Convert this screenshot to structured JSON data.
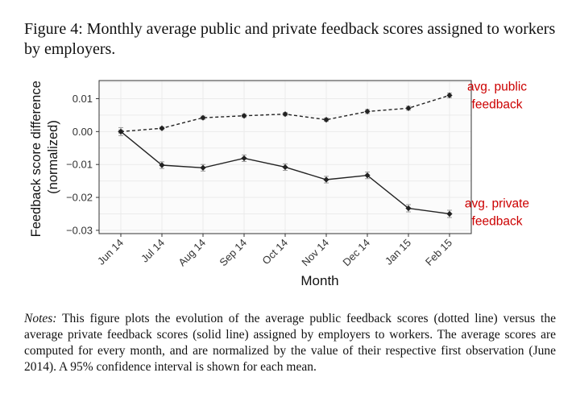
{
  "caption": "Figure 4:  Monthly average public and private feedback scores assigned to workers by employers.",
  "notes": {
    "lead": "Notes:",
    "text": " This figure plots the evolution of the average public feedback scores (dotted line) versus the average private feedback scores (solid line) assigned by employers to workers. The average scores are computed for every month, and are normalized by the value of their respective first observation (June 2014). A 95% confidence interval is shown for each mean."
  },
  "chart_data": {
    "type": "line",
    "title": "",
    "xlabel": "Month",
    "ylabel": [
      "Feedback score difference",
      "(normalized)"
    ],
    "categories": [
      "Jun 14",
      "Jul 14",
      "Aug 14",
      "Sep 14",
      "Oct 14",
      "Nov 14",
      "Dec 14",
      "Jan 15",
      "Feb 15"
    ],
    "ylim": [
      -0.031,
      0.0155
    ],
    "yticks": [
      0.01,
      0.0,
      -0.01,
      -0.02,
      -0.03
    ],
    "ytick_labels": [
      "0.01",
      "0.00",
      "−0.01",
      "−0.02",
      "−0.03"
    ],
    "grid": true,
    "series": [
      {
        "name": "avg. public feedback",
        "label_lines": [
          "avg. public",
          "feedback"
        ],
        "style": "dotted",
        "values": [
          0.0,
          0.001,
          0.0042,
          0.0048,
          0.0053,
          0.0036,
          0.0061,
          0.0071,
          0.011
        ],
        "ci": [
          0.0005,
          0.0004,
          0.0005,
          0.0005,
          0.0005,
          0.0005,
          0.0006,
          0.0006,
          0.0007
        ]
      },
      {
        "name": "avg. private feedback",
        "label_lines": [
          "avg. private",
          "feedback"
        ],
        "style": "solid",
        "values": [
          0.0,
          -0.0102,
          -0.011,
          -0.0081,
          -0.0108,
          -0.0146,
          -0.0133,
          -0.0233,
          -0.025
        ],
        "ci": [
          0.0012,
          0.001,
          0.001,
          0.001,
          0.001,
          0.001,
          0.001,
          0.0011,
          0.0011
        ]
      }
    ],
    "colors": {
      "label": "#cc0000",
      "line": "#222222",
      "ci": "#9a9a9a",
      "grid": "#ebebeb",
      "axis": "#333333"
    }
  }
}
